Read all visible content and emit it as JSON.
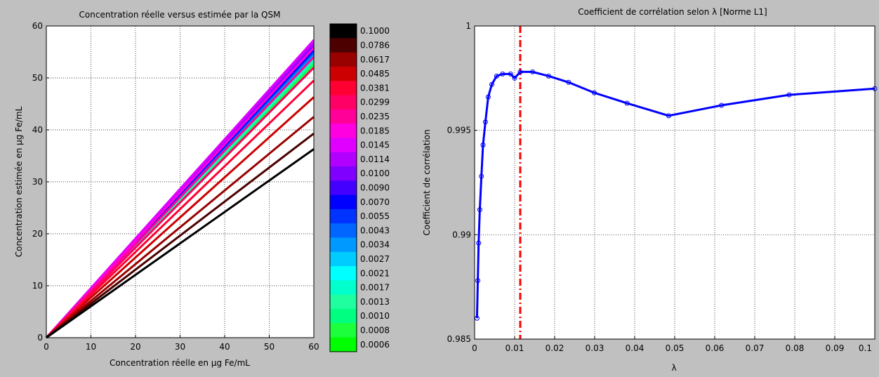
{
  "figure": {
    "background": "#c0c0c0"
  },
  "chart_data": [
    {
      "type": "line",
      "title": "Concentration réelle versus estimée par la QSM",
      "xlabel": "Concentration réelle  en µg Fe/mL",
      "ylabel": "Concentration estimée en µg Fe/mL",
      "xlim": [
        0,
        60
      ],
      "ylim": [
        0,
        60
      ],
      "xticks": [
        "0",
        "10",
        "20",
        "30",
        "40",
        "50",
        "60"
      ],
      "yticks": [
        "0",
        "10",
        "20",
        "30",
        "40",
        "50",
        "60"
      ],
      "grid": true,
      "series": [
        {
          "name": "0.0006",
          "color": "#00ff00",
          "x": [
            0,
            60
          ],
          "y": [
            0,
            52.0
          ]
        },
        {
          "name": "0.0008",
          "color": "#1cff3c",
          "x": [
            0,
            60
          ],
          "y": [
            0,
            52.5
          ]
        },
        {
          "name": "0.0010",
          "color": "#00ff80",
          "x": [
            0,
            60
          ],
          "y": [
            0,
            53.0
          ]
        },
        {
          "name": "0.0013",
          "color": "#1fffa0",
          "x": [
            0,
            60
          ],
          "y": [
            0,
            53.3
          ]
        },
        {
          "name": "0.0017",
          "color": "#00ffcc",
          "x": [
            0,
            60
          ],
          "y": [
            0,
            53.7
          ]
        },
        {
          "name": "0.0021",
          "color": "#00ffff",
          "x": [
            0,
            60
          ],
          "y": [
            0,
            54.0
          ]
        },
        {
          "name": "0.0027",
          "color": "#00ccff",
          "x": [
            0,
            60
          ],
          "y": [
            0,
            54.3
          ]
        },
        {
          "name": "0.0034",
          "color": "#0099ff",
          "x": [
            0,
            60
          ],
          "y": [
            0,
            54.6
          ]
        },
        {
          "name": "0.0043",
          "color": "#0066ff",
          "x": [
            0,
            60
          ],
          "y": [
            0,
            54.9
          ]
        },
        {
          "name": "0.0055",
          "color": "#0033ff",
          "x": [
            0,
            60
          ],
          "y": [
            0,
            55.2
          ]
        },
        {
          "name": "0.0070",
          "color": "#0000ff",
          "x": [
            0,
            60
          ],
          "y": [
            0,
            55.5
          ]
        },
        {
          "name": "0.0090",
          "color": "#4400ff",
          "x": [
            0,
            60
          ],
          "y": [
            0,
            55.9
          ]
        },
        {
          "name": "0.0100",
          "color": "#7f00ff",
          "x": [
            0,
            60
          ],
          "y": [
            0,
            56.3
          ]
        },
        {
          "name": "0.0114",
          "color": "#b200ff",
          "x": [
            0,
            60
          ],
          "y": [
            0,
            56.7
          ]
        },
        {
          "name": "0.0145",
          "color": "#e000ff",
          "x": [
            0,
            60
          ],
          "y": [
            0,
            57.3
          ]
        },
        {
          "name": "0.0185",
          "color": "#ff00e0",
          "x": [
            0,
            60
          ],
          "y": [
            0,
            55.8
          ]
        },
        {
          "name": "0.0235",
          "color": "#ff0099",
          "x": [
            0,
            60
          ],
          "y": [
            0,
            54.0
          ]
        },
        {
          "name": "0.0299",
          "color": "#ff0066",
          "x": [
            0,
            60
          ],
          "y": [
            0,
            52.0
          ]
        },
        {
          "name": "0.0381",
          "color": "#ff0033",
          "x": [
            0,
            60
          ],
          "y": [
            0,
            49.5
          ]
        },
        {
          "name": "0.0485",
          "color": "#cc0000",
          "x": [
            0,
            60
          ],
          "y": [
            0,
            46.3
          ]
        },
        {
          "name": "0.0617",
          "color": "#990000",
          "x": [
            0,
            60
          ],
          "y": [
            0,
            42.5
          ]
        },
        {
          "name": "0.0786",
          "color": "#4c0000",
          "x": [
            0,
            60
          ],
          "y": [
            0,
            39.3
          ]
        },
        {
          "name": "0.1000",
          "color": "#000000",
          "x": [
            0,
            60
          ],
          "y": [
            0,
            36.3
          ]
        }
      ],
      "legend": {
        "placement": "right-colorbar",
        "entries_top_to_bottom": [
          "0.1000",
          "0.0786",
          "0.0617",
          "0.0485",
          "0.0381",
          "0.0299",
          "0.0235",
          "0.0185",
          "0.0145",
          "0.0114",
          "0.0100",
          "0.0090",
          "0.0070",
          "0.0055",
          "0.0043",
          "0.0034",
          "0.0027",
          "0.0021",
          "0.0017",
          "0.0013",
          "0.0010",
          "0.0008",
          "0.0006"
        ]
      }
    },
    {
      "type": "line",
      "title": "Coefficient de corrélation selon λ [Norme L1]",
      "xlabel": "λ",
      "ylabel": "Coefficient de corrélation",
      "xlim": [
        0,
        0.1
      ],
      "ylim": [
        0.985,
        1
      ],
      "xticks": [
        "0",
        "0.01",
        "0.02",
        "0.03",
        "0.04",
        "0.05",
        "0.06",
        "0.07",
        "0.08",
        "0.09",
        "0.1"
      ],
      "yticks": [
        "0.985",
        "0.99",
        "0.995",
        "1"
      ],
      "grid": true,
      "series": [
        {
          "name": "",
          "color": "#0000ff",
          "x": [
            0.0006,
            0.0008,
            0.001,
            0.0013,
            0.0017,
            0.0021,
            0.0027,
            0.0034,
            0.0043,
            0.0055,
            0.007,
            0.009,
            0.01,
            0.0114,
            0.0145,
            0.0185,
            0.0235,
            0.0299,
            0.0381,
            0.0485,
            0.0617,
            0.0786,
            0.1
          ],
          "y": [
            0.986,
            0.9878,
            0.9896,
            0.9912,
            0.9928,
            0.9943,
            0.9954,
            0.9966,
            0.9972,
            0.9976,
            0.9977,
            0.9977,
            0.9975,
            0.9978,
            0.9978,
            0.9976,
            0.9973,
            0.9968,
            0.9963,
            0.9957,
            0.9962,
            0.9967,
            0.997
          ]
        }
      ],
      "vline": {
        "x": 0.0114,
        "color": "#ff0000",
        "style": "dash-dot"
      }
    }
  ]
}
